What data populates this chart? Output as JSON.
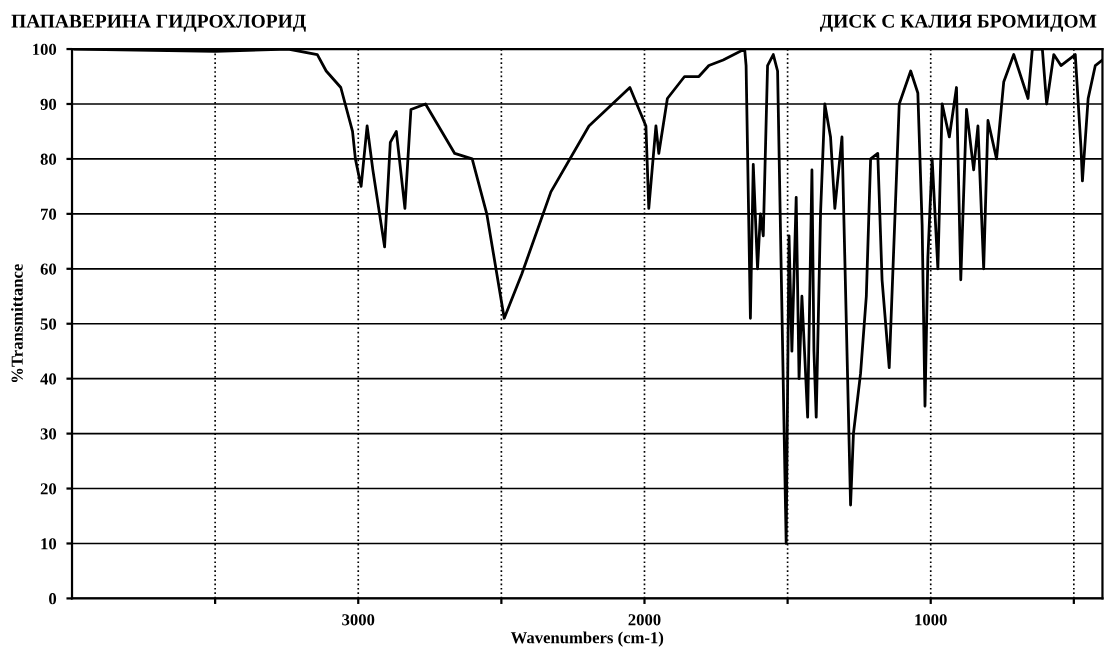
{
  "chart_data": {
    "type": "line",
    "title": "ПАПАВЕРИНА ГИДРОХЛОРИД",
    "subtitle": "ДИСК С КАЛИЯ БРОМИДОМ",
    "xlabel": "Wavenumbers (cm-1)",
    "ylabel": "%Transmittance",
    "xlim": [
      4000,
      400
    ],
    "ylim": [
      0,
      100
    ],
    "xticks": [
      {
        "value": 3500,
        "label": null
      },
      3000,
      {
        "value": 2500,
        "label": null
      },
      2000,
      {
        "value": 1500,
        "label": null
      },
      1000,
      {
        "value": 500,
        "label": null
      }
    ],
    "yticks": [
      0,
      10,
      20,
      30,
      40,
      50,
      60,
      70,
      80,
      90,
      100
    ],
    "grid": true,
    "legend": false,
    "marker": "none",
    "line_style": "solid",
    "series": [
      {
        "color": "#000000",
        "x": [
          3990,
          3500,
          3245,
          3143,
          3112,
          3061,
          3020,
          3010,
          2990,
          2969,
          2949,
          2908,
          2888,
          2867,
          2837,
          2816,
          2765,
          2663,
          2602,
          2551,
          2490,
          2429,
          2327,
          2194,
          2051,
          1995,
          1985,
          1960,
          1950,
          1920,
          1860,
          1810,
          1775,
          1725,
          1650,
          1645,
          1630,
          1620,
          1605,
          1595,
          1585,
          1570,
          1550,
          1535,
          1505,
          1495,
          1485,
          1470,
          1460,
          1450,
          1440,
          1430,
          1415,
          1408,
          1400,
          1385,
          1370,
          1350,
          1335,
          1310,
          1280,
          1270,
          1245,
          1225,
          1210,
          1185,
          1170,
          1145,
          1110,
          1070,
          1045,
          1030,
          1020,
          1010,
          995,
          975,
          960,
          935,
          910,
          895,
          875,
          850,
          835,
          815,
          800,
          770,
          745,
          710,
          660,
          645,
          610,
          595,
          570,
          545,
          495,
          475,
          470,
          450,
          425,
          400
        ],
        "values": [
          100,
          99.6,
          100,
          99,
          96,
          93,
          85,
          80,
          75,
          86,
          78,
          64,
          83,
          85,
          71,
          89,
          90,
          81,
          80,
          70,
          51,
          59,
          74,
          86,
          93,
          86,
          71,
          86,
          81,
          91,
          95,
          95,
          97,
          98,
          100,
          97,
          51,
          79,
          60,
          70,
          66,
          97,
          99,
          96,
          10,
          66,
          45,
          73,
          40,
          55,
          44,
          33,
          78,
          45,
          33,
          70,
          90,
          84,
          71,
          84,
          17,
          30,
          41,
          55,
          80,
          81,
          58,
          42,
          90,
          96,
          92,
          68,
          35,
          62,
          80,
          60,
          90,
          84,
          93,
          58,
          89,
          78,
          86,
          60,
          87,
          80,
          94,
          99,
          91,
          100,
          100,
          90,
          99,
          97,
          99,
          82,
          76,
          91,
          97,
          98
        ]
      }
    ]
  }
}
